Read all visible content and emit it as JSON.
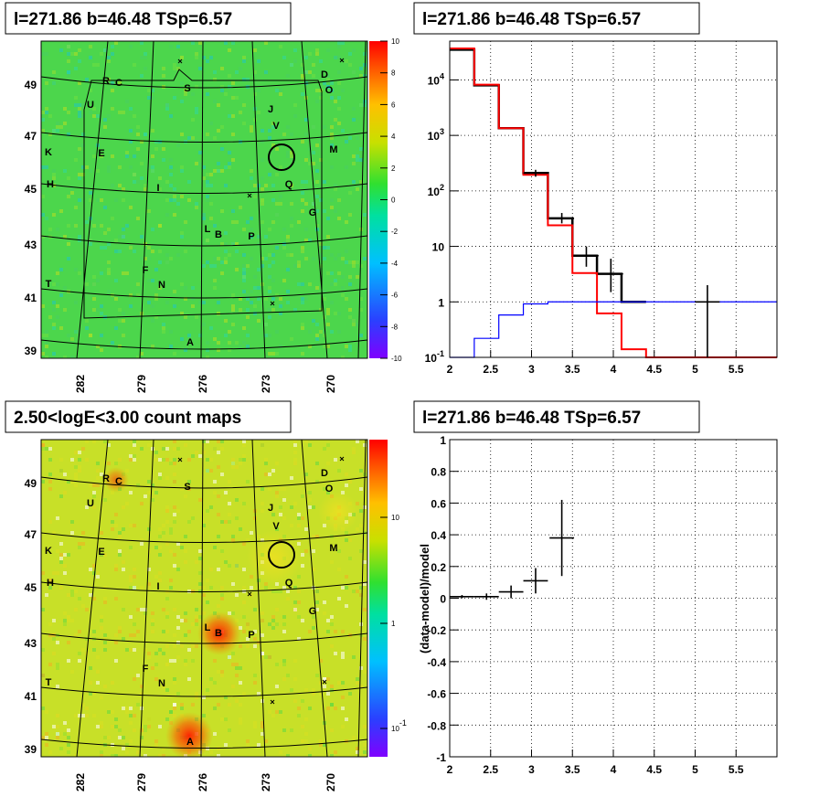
{
  "panels": {
    "top_left_title": "l=271.86 b=46.48 TSp=6.57",
    "top_right_title": "l=271.86 b=46.48 TSp=6.57",
    "bottom_left_title": "2.50<logE<3.00 count maps",
    "bottom_right_title": "l=271.86 b=46.48 TSp=6.57"
  },
  "maps": {
    "lon_ticks": [
      "282",
      "279",
      "276",
      "273",
      "270"
    ],
    "lat_ticks": [
      "49",
      "47",
      "45",
      "43",
      "41",
      "39"
    ],
    "sources": [
      "R",
      "C",
      "D",
      "O",
      "S",
      "U",
      "J",
      "V",
      "K",
      "E",
      "M",
      "H",
      "I",
      "Q",
      "G",
      "L",
      "B",
      "P",
      "T",
      "F",
      "N",
      "A"
    ],
    "residual_colorbar_ticks": [
      "10",
      "8",
      "6",
      "4",
      "2",
      "0",
      "-2",
      "-4",
      "-6",
      "-8",
      "-10"
    ],
    "count_colorbar_ticks": [
      "10",
      "1",
      "10-1"
    ]
  },
  "chart_data": [
    {
      "type": "line",
      "name": "spectrum",
      "title": "l=271.86 b=46.48 TSp=6.57",
      "xlim": [
        2.0,
        6.0
      ],
      "ylim": [
        0.1,
        50000
      ],
      "yscale": "log",
      "grid": true,
      "x_ticks": [
        "2",
        "2.5",
        "3",
        "3.5",
        "4",
        "4.5",
        "5",
        "5.5"
      ],
      "y_ticks": [
        "10-1",
        "1",
        "10",
        "102",
        "103",
        "104"
      ],
      "bin_edges": [
        2.0,
        2.3,
        2.6,
        2.9,
        3.2,
        3.5,
        3.8,
        4.1,
        4.4,
        6.0
      ],
      "series": [
        {
          "color": "#000000",
          "values": [
            35000,
            8000,
            1350,
            210,
            32,
            6.8,
            3.2,
            1.0
          ]
        },
        {
          "color": "#ff0000",
          "values": [
            37000,
            8200,
            1350,
            195,
            24,
            3.3,
            0.62,
            0.14,
            0.1
          ]
        },
        {
          "color": "#0000ff",
          "values": [
            0.05,
            0.22,
            0.58,
            0.92,
            1.0,
            1.0,
            1.0,
            1.0,
            1.0
          ]
        }
      ],
      "data_points": [
        {
          "x": 3.05,
          "y": 210,
          "xerr": 0.15,
          "ylo": 180,
          "yhi": 240
        },
        {
          "x": 3.37,
          "y": 32,
          "xerr": 0.15,
          "ylo": 26,
          "yhi": 40
        },
        {
          "x": 3.67,
          "y": 6.8,
          "xerr": 0.15,
          "ylo": 4.3,
          "yhi": 10
        },
        {
          "x": 3.97,
          "y": 3.2,
          "xerr": 0.15,
          "ylo": 1.5,
          "yhi": 6.0
        },
        {
          "x": 5.15,
          "y": 1.0,
          "xerr": 0.15,
          "ylo": 0.1,
          "yhi": 2.0
        }
      ]
    },
    {
      "type": "scatter",
      "name": "residuals",
      "title": "l=271.86 b=46.48 TSp=6.57",
      "ylabel": "(data-model)/model",
      "xlim": [
        2.0,
        6.0
      ],
      "ylim": [
        -1.0,
        1.0
      ],
      "grid": true,
      "x_ticks": [
        "2",
        "2.5",
        "3",
        "3.5",
        "4",
        "4.5",
        "5",
        "5.5"
      ],
      "y_ticks": [
        "1",
        "0.8",
        "0.6",
        "0.4",
        "0.2",
        "0",
        "-0.2",
        "-0.4",
        "-0.6",
        "-0.8",
        "-1"
      ],
      "points": [
        {
          "x": 2.15,
          "y": 0.01,
          "xerr": 0.15,
          "yerr": 0.01
        },
        {
          "x": 2.45,
          "y": 0.01,
          "xerr": 0.15,
          "yerr": 0.02
        },
        {
          "x": 2.75,
          "y": 0.04,
          "xerr": 0.15,
          "yerr": 0.04
        },
        {
          "x": 3.05,
          "y": 0.11,
          "xerr": 0.15,
          "yerr": 0.08
        },
        {
          "x": 3.37,
          "y": 0.38,
          "xerr": 0.15,
          "yerr": 0.24
        }
      ]
    }
  ]
}
